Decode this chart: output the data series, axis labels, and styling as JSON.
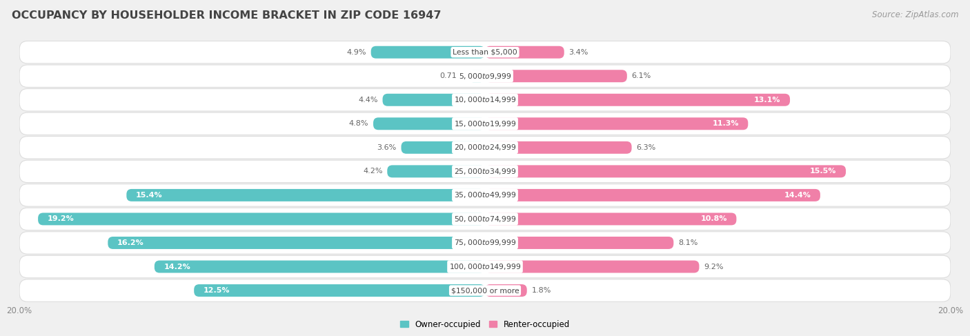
{
  "title": "OCCUPANCY BY HOUSEHOLDER INCOME BRACKET IN ZIP CODE 16947",
  "source": "Source: ZipAtlas.com",
  "categories": [
    "Less than $5,000",
    "$5,000 to $9,999",
    "$10,000 to $14,999",
    "$15,000 to $19,999",
    "$20,000 to $24,999",
    "$25,000 to $34,999",
    "$35,000 to $49,999",
    "$50,000 to $74,999",
    "$75,000 to $99,999",
    "$100,000 to $149,999",
    "$150,000 or more"
  ],
  "owner_values": [
    4.9,
    0.71,
    4.4,
    4.8,
    3.6,
    4.2,
    15.4,
    19.2,
    16.2,
    14.2,
    12.5
  ],
  "renter_values": [
    3.4,
    6.1,
    13.1,
    11.3,
    6.3,
    15.5,
    14.4,
    10.8,
    8.1,
    9.2,
    1.8
  ],
  "owner_color": "#5BC4C4",
  "renter_color": "#F080A8",
  "owner_label": "Owner-occupied",
  "renter_label": "Renter-occupied",
  "bar_height": 0.52,
  "xlim": 20.0,
  "background_color": "#f0f0f0",
  "row_bg_color": "#ffffff",
  "row_border_color": "#dddddd",
  "title_fontsize": 11.5,
  "source_fontsize": 8.5,
  "label_fontsize": 8,
  "cat_fontsize": 7.8,
  "tick_fontsize": 8.5
}
